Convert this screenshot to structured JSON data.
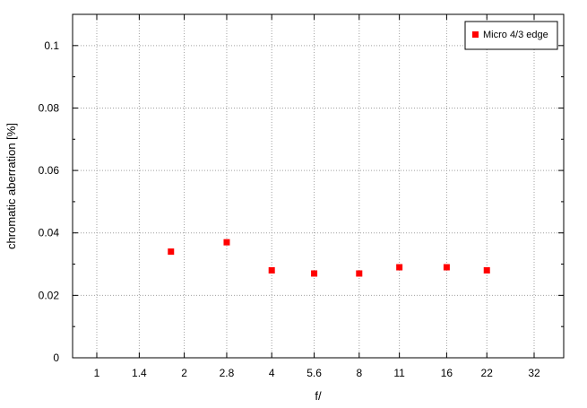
{
  "chart_data": {
    "type": "scatter",
    "title": "",
    "xlabel": "f/",
    "ylabel": "chromatic aberration [%]",
    "x_ticks": [
      "1",
      "1.4",
      "2",
      "2.8",
      "4",
      "5.6",
      "8",
      "11",
      "16",
      "22",
      "32"
    ],
    "ylim": [
      0,
      0.11
    ],
    "y_ticks": [
      0,
      0.02,
      0.04,
      0.06,
      0.08,
      0.1
    ],
    "y_tick_labels": [
      "0",
      "0.02",
      "0.04",
      "0.06",
      "0.08",
      "0.1"
    ],
    "grid": true,
    "legend_position": "top-right",
    "series": [
      {
        "name": "Micro 4/3 edge",
        "color": "#ff0000",
        "marker": "square",
        "points": [
          {
            "x": "1.8",
            "y": 0.034
          },
          {
            "x": "2.8",
            "y": 0.037
          },
          {
            "x": "4",
            "y": 0.028
          },
          {
            "x": "5.6",
            "y": 0.027
          },
          {
            "x": "8",
            "y": 0.027
          },
          {
            "x": "11",
            "y": 0.029
          },
          {
            "x": "16",
            "y": 0.029
          },
          {
            "x": "22",
            "y": 0.028
          }
        ]
      }
    ]
  }
}
